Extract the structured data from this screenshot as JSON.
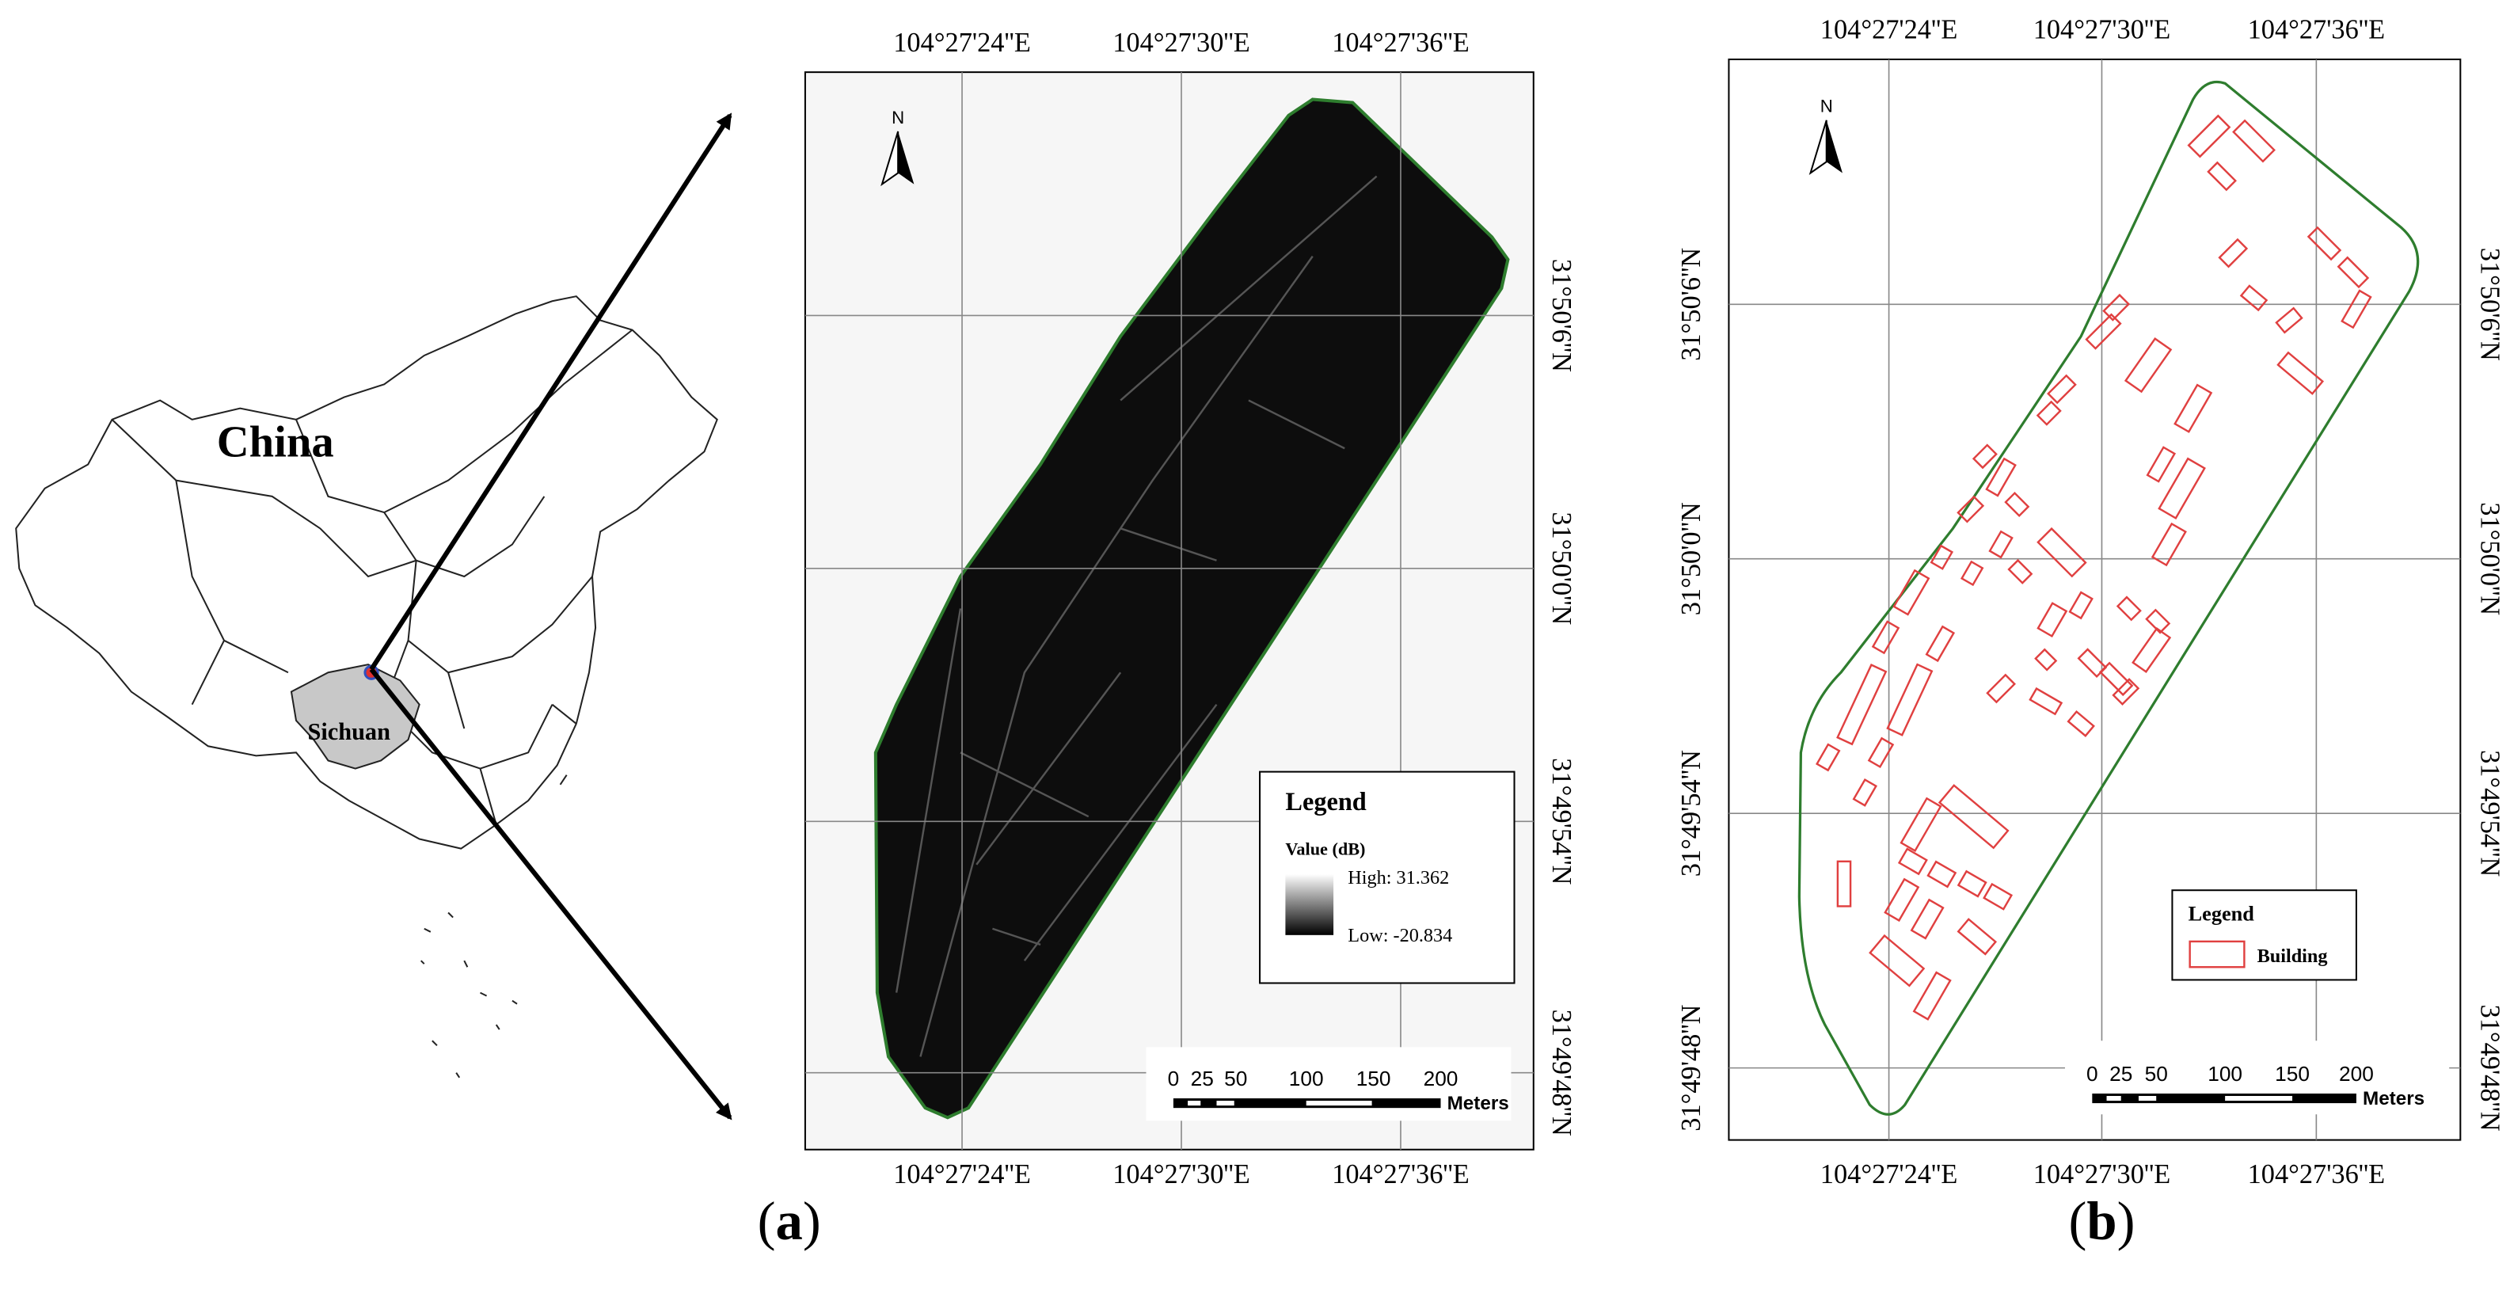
{
  "locator": {
    "country": "China",
    "province": "Sichuan"
  },
  "panel_a": {
    "caption": "(a)",
    "north": "N",
    "top_labels": [
      "104°27'24''E",
      "104°27'30''E",
      "104°27'36''E"
    ],
    "bottom_labels": [
      "104°27'24''E",
      "104°27'30''E",
      "104°27'36''E"
    ],
    "right_labels": [
      "31°50'6''N",
      "31°50'0''N",
      "31°49'54''N",
      "31°49'48''N"
    ],
    "legend": {
      "title": "Legend",
      "subtitle": "Value (dB)",
      "high": "High: 31.362",
      "low": "Low: -20.834"
    },
    "scale_bar": {
      "ticks": [
        "0",
        "25",
        "50",
        "100",
        "150",
        "200"
      ],
      "unit": "Meters"
    }
  },
  "panel_b": {
    "caption": "(b)",
    "north": "N",
    "top_labels": [
      "104°27'24''E",
      "104°27'30''E",
      "104°27'36''E"
    ],
    "bottom_labels": [
      "104°27'24''E",
      "104°27'30''E",
      "104°27'36''E"
    ],
    "left_labels": [
      "31°50'6''N",
      "31°50'0''N",
      "31°49'54''N",
      "31°49'48''N"
    ],
    "right_labels": [
      "31°50'6''N",
      "31°50'0''N",
      "31°49'54''N",
      "31°49'48''N"
    ],
    "legend": {
      "title": "Legend",
      "item": "Building"
    },
    "scale_bar": {
      "ticks": [
        "0",
        "25",
        "50",
        "100",
        "150",
        "200"
      ],
      "unit": "Meters"
    }
  }
}
